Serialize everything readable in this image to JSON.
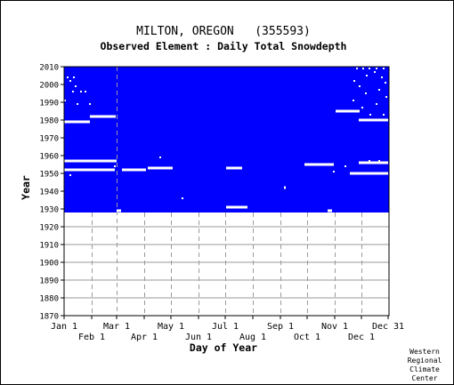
{
  "chart_data": {
    "type": "heatmap",
    "title": "MILTON, OREGON   (355593)",
    "subtitle": "Observed Element : Daily Total Snowdepth",
    "xlabel": "Day of Year",
    "ylabel": "Year",
    "ylim": [
      1870,
      2010
    ],
    "y_ticks": [
      1870,
      1880,
      1890,
      1900,
      1910,
      1920,
      1930,
      1940,
      1950,
      1960,
      1970,
      1980,
      1990,
      2000,
      2010
    ],
    "x_ticks_top": [
      {
        "label": "Jan 1",
        "day": 1
      },
      {
        "label": "Mar 1",
        "day": 60
      },
      {
        "label": "May 1",
        "day": 121
      },
      {
        "label": "Jul 1",
        "day": 182
      },
      {
        "label": "Sep 1",
        "day": 244
      },
      {
        "label": "Nov 1",
        "day": 305
      },
      {
        "label": "Dec 31",
        "day": 365
      }
    ],
    "x_ticks_bottom": [
      {
        "label": "Feb 1",
        "day": 32
      },
      {
        "label": "Apr 1",
        "day": 91
      },
      {
        "label": "Jun 1",
        "day": 152
      },
      {
        "label": "Aug 1",
        "day": 213
      },
      {
        "label": "Oct 1",
        "day": 274
      },
      {
        "label": "Dec 1",
        "day": 335
      }
    ],
    "data_fill_color": "#0000ff",
    "gap_color": "#ffffff",
    "record_start_year": 1928,
    "record_end_year": 2010,
    "data_gaps": [
      {
        "year": 1929,
        "day_start": 60,
        "day_end": 65
      },
      {
        "year": 1931,
        "day_start": 183,
        "day_end": 207
      },
      {
        "year": 1942,
        "day_start": 248,
        "day_end": 250
      },
      {
        "year": 1952,
        "day_start": 1,
        "day_end": 58
      },
      {
        "year": 1952,
        "day_start": 66,
        "day_end": 93
      },
      {
        "year": 1953,
        "day_start": 95,
        "day_end": 123
      },
      {
        "year": 1953,
        "day_start": 183,
        "day_end": 201
      },
      {
        "year": 1955,
        "day_start": 271,
        "day_end": 304
      },
      {
        "year": 1950,
        "day_start": 322,
        "day_end": 365
      },
      {
        "year": 1957,
        "day_start": 1,
        "day_end": 60
      },
      {
        "year": 1979,
        "day_start": 1,
        "day_end": 30
      },
      {
        "year": 1982,
        "day_start": 30,
        "day_end": 59
      },
      {
        "year": 1980,
        "day_start": 332,
        "day_end": 365
      },
      {
        "year": 1985,
        "day_start": 306,
        "day_end": 333
      },
      {
        "year": 1929,
        "day_start": 297,
        "day_end": 302
      },
      {
        "year": 1956,
        "day_start": 332,
        "day_end": 365
      }
    ],
    "scattered_gaps": [
      {
        "year": 2004,
        "day": 5
      },
      {
        "year": 2004,
        "day": 12
      },
      {
        "year": 2002,
        "day": 8
      },
      {
        "year": 1999,
        "day": 14
      },
      {
        "year": 1996,
        "day": 20
      },
      {
        "year": 1996,
        "day": 25
      },
      {
        "year": 1991,
        "day": 2
      },
      {
        "year": 1989,
        "day": 16
      },
      {
        "year": 1989,
        "day": 30
      },
      {
        "year": 1996,
        "day": 11
      },
      {
        "year": 1949,
        "day": 8
      },
      {
        "year": 1954,
        "day": 58
      },
      {
        "year": 1959,
        "day": 109
      },
      {
        "year": 1936,
        "day": 134
      },
      {
        "year": 2009,
        "day": 330
      },
      {
        "year": 2009,
        "day": 337
      },
      {
        "year": 2009,
        "day": 344
      },
      {
        "year": 2009,
        "day": 352
      },
      {
        "year": 2009,
        "day": 360
      },
      {
        "year": 2007,
        "day": 350
      },
      {
        "year": 2005,
        "day": 341
      },
      {
        "year": 2004,
        "day": 358
      },
      {
        "year": 2002,
        "day": 327
      },
      {
        "year": 2001,
        "day": 362
      },
      {
        "year": 1999,
        "day": 333
      },
      {
        "year": 1997,
        "day": 355
      },
      {
        "year": 1995,
        "day": 340
      },
      {
        "year": 1993,
        "day": 363
      },
      {
        "year": 1991,
        "day": 326
      },
      {
        "year": 1989,
        "day": 352
      },
      {
        "year": 1987,
        "day": 336
      },
      {
        "year": 1983,
        "day": 360
      },
      {
        "year": 1983,
        "day": 345
      },
      {
        "year": 1957,
        "day": 344
      },
      {
        "year": 1957,
        "day": 355
      },
      {
        "year": 1954,
        "day": 317
      },
      {
        "year": 1951,
        "day": 304
      }
    ]
  },
  "credit": [
    "Western",
    "Regional",
    "Climate",
    "Center"
  ]
}
